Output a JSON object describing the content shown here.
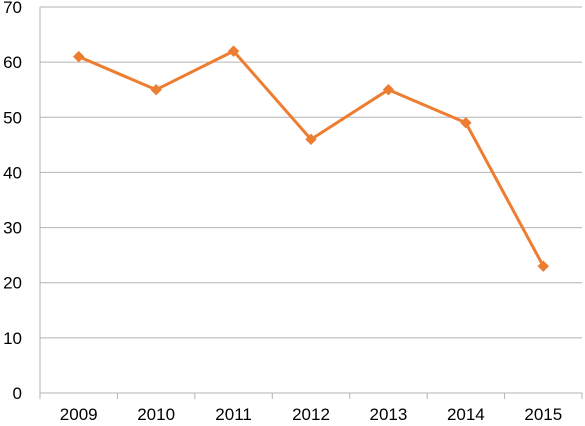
{
  "chart_data": {
    "type": "line",
    "title": "",
    "xlabel": "",
    "ylabel": "",
    "categories": [
      "2009",
      "2010",
      "2011",
      "2012",
      "2013",
      "2014",
      "2015"
    ],
    "series": [
      {
        "values": [
          61,
          55,
          62,
          46,
          55,
          49,
          23
        ],
        "color": "#ed7d31",
        "marker": "diamond"
      }
    ],
    "ylim": [
      0,
      70
    ],
    "y_ticks": [
      "0",
      "10",
      "20",
      "30",
      "40",
      "50",
      "60",
      "70"
    ],
    "grid": true,
    "legend": "none"
  }
}
